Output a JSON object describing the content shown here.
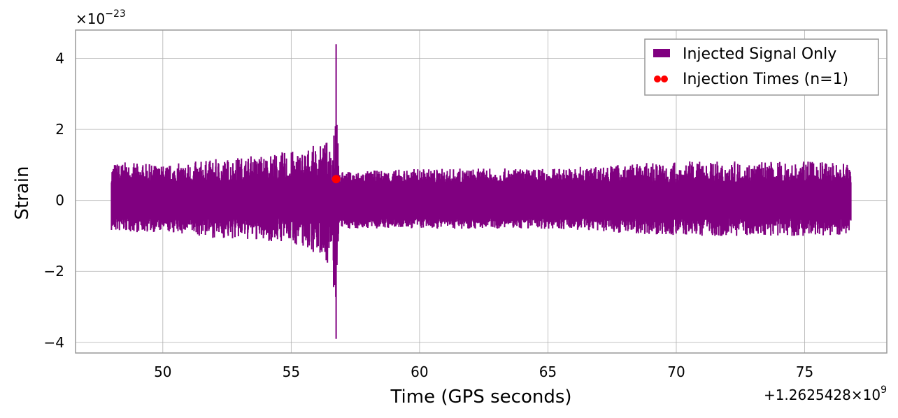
{
  "chart_data": {
    "type": "line",
    "xlabel": "Time (GPS seconds)",
    "ylabel": "Strain",
    "x_offset_label": "+1.2625428×10",
    "x_offset_exp": "9",
    "y_scale_label": "×10",
    "y_scale_exp": "−23",
    "xlim": [
      46.6,
      78.2
    ],
    "ylim": [
      -4.3,
      4.8
    ],
    "x_ticks": [
      50,
      55,
      60,
      65,
      70,
      75
    ],
    "x_tick_labels": [
      "50",
      "55",
      "60",
      "65",
      "70",
      "75"
    ],
    "y_ticks": [
      -4,
      -2,
      0,
      2,
      4
    ],
    "y_tick_labels": [
      "−4",
      "−2",
      "0",
      "2",
      "4"
    ],
    "grid": true,
    "legend_position": "top-right",
    "series": [
      {
        "name": "Injected Signal Only",
        "color": "#800080",
        "x_range": [
          48.0,
          76.8
        ],
        "noise_envelope": [
          {
            "x": 48.0,
            "y_max": 1.1,
            "y_min": -0.9
          },
          {
            "x": 50.0,
            "y_max": 1.0,
            "y_min": -0.9
          },
          {
            "x": 52.5,
            "y_max": 1.2,
            "y_min": -1.1
          },
          {
            "x": 55.0,
            "y_max": 1.4,
            "y_min": -1.2
          },
          {
            "x": 56.3,
            "y_max": 1.6,
            "y_min": -1.6
          },
          {
            "x": 56.6,
            "y_max": 2.0,
            "y_min": -2.2
          },
          {
            "x": 56.75,
            "y_max": 4.4,
            "y_min": -3.9
          },
          {
            "x": 56.85,
            "y_max": 0.8,
            "y_min": -0.8
          },
          {
            "x": 60.0,
            "y_max": 0.9,
            "y_min": -0.8
          },
          {
            "x": 65.0,
            "y_max": 0.9,
            "y_min": -0.8
          },
          {
            "x": 70.0,
            "y_max": 1.1,
            "y_min": -1.0
          },
          {
            "x": 76.8,
            "y_max": 1.1,
            "y_min": -1.0
          }
        ]
      },
      {
        "name": "Injection Times (n=1)",
        "color": "#ff0000",
        "points": [
          {
            "x": 56.75,
            "y": 0.6
          }
        ]
      }
    ]
  }
}
